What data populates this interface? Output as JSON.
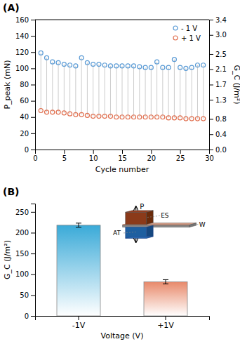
{
  "chart_data": [
    {
      "type": "scatter",
      "title": "(A)",
      "xlabel": "Cycle number",
      "ylabel": "P_peak (mN)",
      "y2label": "G_C (J/m²)",
      "x": [
        1,
        2,
        3,
        4,
        5,
        6,
        7,
        8,
        9,
        10,
        11,
        12,
        13,
        14,
        15,
        16,
        17,
        18,
        19,
        20,
        21,
        22,
        23,
        24,
        25,
        26,
        27,
        28,
        29
      ],
      "series": [
        {
          "name": "- 1 V",
          "color": "#5B9BD5",
          "marker": "circle",
          "values": [
            119,
            113,
            108,
            107,
            105,
            104,
            103,
            113,
            107,
            105,
            105,
            104,
            103,
            103,
            103,
            103,
            103,
            102,
            101,
            101,
            108,
            101,
            101,
            111,
            101,
            100,
            101,
            104,
            104
          ]
        },
        {
          "name": "+ 1 V",
          "color": "#E07050",
          "marker": "circle",
          "values": [
            48,
            46,
            46,
            46,
            45,
            44,
            43,
            43,
            42,
            41,
            41,
            41,
            41,
            40,
            40,
            40,
            40,
            40,
            40,
            40,
            40,
            40,
            39,
            39,
            39,
            38,
            38,
            38,
            38
          ]
        }
      ],
      "xlim": [
        0,
        30
      ],
      "xticks": [
        0,
        5,
        10,
        15,
        20,
        25,
        30
      ],
      "ylim": [
        0,
        160
      ],
      "yticks": [
        0,
        20,
        40,
        60,
        80,
        100,
        120,
        140,
        160
      ],
      "y2lim": [
        0.0,
        3.4
      ],
      "y2ticks": [
        {
          "value": 0.0,
          "label": "0.0"
        },
        0.4,
        0.8,
        1.3,
        1.7,
        2.1,
        2.5,
        {
          "value": 3.0,
          "label": "3.0"
        },
        3.4
      ],
      "legend": "upper right",
      "grid": false
    },
    {
      "type": "bar",
      "title": "(B)",
      "xlabel": "Voltage (V)",
      "ylabel": "G_C (J/m²)",
      "categories": [
        "-1V",
        "+1V"
      ],
      "values": [
        218,
        82
      ],
      "errors": [
        5,
        5
      ],
      "colors": [
        "#3AAAD8",
        "#E8896A"
      ],
      "ylim": [
        0,
        270
      ],
      "yticks": [
        0,
        50,
        100,
        150,
        200,
        250
      ],
      "grid": false,
      "annotations": [
        {
          "text": "P"
        },
        {
          "text": "ES"
        },
        {
          "text": "W"
        },
        {
          "text": "AT"
        }
      ]
    }
  ]
}
